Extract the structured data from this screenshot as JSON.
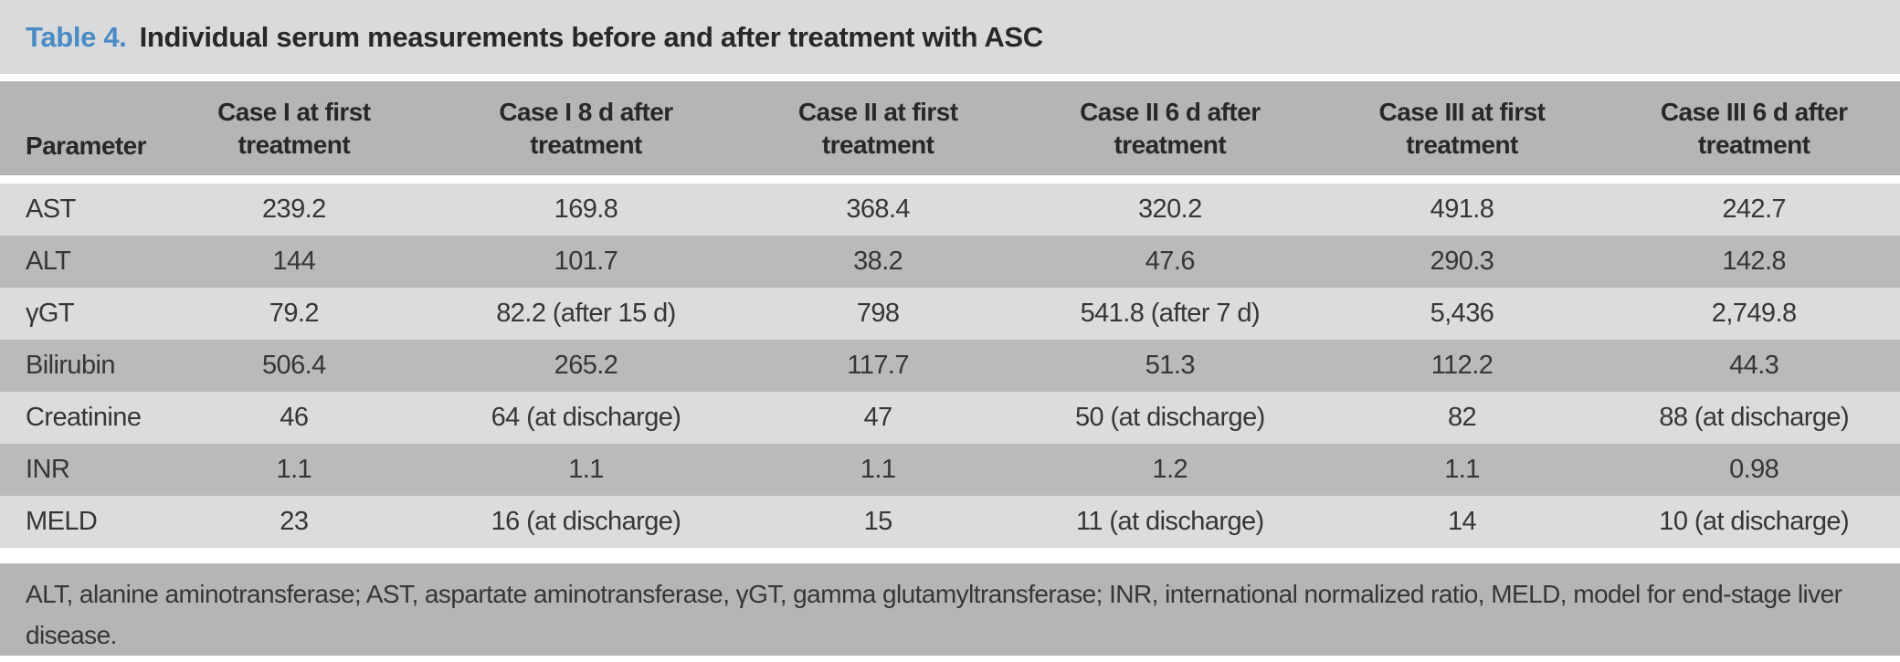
{
  "title": {
    "label": "Table 4.",
    "text": "Individual serum measurements before and after treatment with ASC"
  },
  "table": {
    "columns": [
      {
        "lines": [
          "Parameter",
          ""
        ]
      },
      {
        "lines": [
          "Case I at first",
          "treatment"
        ]
      },
      {
        "lines": [
          "Case I 8 d after",
          "treatment"
        ]
      },
      {
        "lines": [
          "Case II at first",
          "treatment"
        ]
      },
      {
        "lines": [
          "Case II 6 d after",
          "treatment"
        ]
      },
      {
        "lines": [
          "Case III at first",
          "treatment"
        ]
      },
      {
        "lines": [
          "Case III 6 d after",
          "treatment"
        ]
      }
    ],
    "rows": [
      {
        "parameter": "AST",
        "values": [
          "239.2",
          "169.8",
          "368.4",
          "320.2",
          "491.8",
          "242.7"
        ]
      },
      {
        "parameter": "ALT",
        "values": [
          "144",
          "101.7",
          "38.2",
          "47.6",
          "290.3",
          "142.8"
        ]
      },
      {
        "parameter": "γGT",
        "values": [
          "79.2",
          "82.2 (after 15 d)",
          "798",
          "541.8 (after 7 d)",
          "5,436",
          "2,749.8"
        ]
      },
      {
        "parameter": "Bilirubin",
        "values": [
          "506.4",
          "265.2",
          "117.7",
          "51.3",
          "112.2",
          "44.3"
        ]
      },
      {
        "parameter": "Creatinine",
        "values": [
          "46",
          "64 (at discharge)",
          "47",
          "50 (at discharge)",
          "82",
          "88 (at discharge)"
        ]
      },
      {
        "parameter": "INR",
        "values": [
          "1.1",
          "1.1",
          "1.1",
          "1.2",
          "1.1",
          "0.98"
        ]
      },
      {
        "parameter": "MELD",
        "values": [
          "23",
          "16 (at discharge)",
          "15",
          "11 (at discharge)",
          "14",
          "10 (at discharge)"
        ]
      }
    ]
  },
  "footnote": "ALT, alanine aminotransferase; AST, aspartate aminotransferase, γGT, gamma glutamyltransferase; INR, international normalized ratio, MELD, model for end-stage liver disease.",
  "colors": {
    "band-light": "#d9dadb",
    "row-light": "#dbdcdd",
    "band-medium": "#b4b5b7",
    "row-medium": "#b9babc",
    "text-dark": "#272829",
    "text-body": "#353638",
    "accent-blue": "#4a8bc6",
    "separator": "#ffffff"
  }
}
